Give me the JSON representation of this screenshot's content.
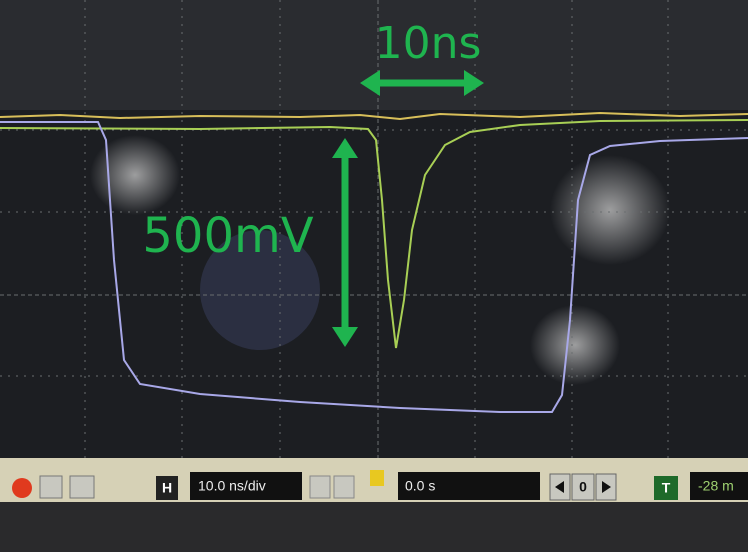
{
  "annotations": {
    "time_scale": "10ns",
    "voltage_scale": "500mV"
  },
  "toolbar": {
    "horizontal_button": "H",
    "time_per_div": "10.0 ns/div",
    "delay": "0.0 s",
    "step": "0",
    "trigger_button": "T",
    "trigger_level": "-28 m"
  }
}
